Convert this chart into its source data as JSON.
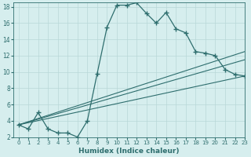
{
  "xlabel": "Humidex (Indice chaleur)",
  "line1_x": [
    0,
    1,
    2,
    3,
    4,
    5,
    6,
    7,
    8,
    9,
    10,
    11,
    12,
    13,
    14,
    15,
    16,
    17,
    18,
    19,
    20,
    21,
    22,
    23
  ],
  "line1_y": [
    3.5,
    3.0,
    5.0,
    3.0,
    2.5,
    2.5,
    2.0,
    4.0,
    9.8,
    15.5,
    18.2,
    18.2,
    18.5,
    17.2,
    16.0,
    17.3,
    15.3,
    14.8,
    12.5,
    12.3,
    12.0,
    10.3,
    9.7,
    9.5
  ],
  "line2_x": [
    0,
    23
  ],
  "line2_y": [
    3.5,
    9.5
  ],
  "line3_x": [
    0,
    23
  ],
  "line3_y": [
    3.5,
    11.5
  ],
  "line4_x": [
    0,
    23
  ],
  "line4_y": [
    3.5,
    12.5
  ],
  "color": "#2e6e6e",
  "bg_color": "#d6eeee",
  "grid_color": "#b8d8d8",
  "xlim": [
    -0.5,
    23
  ],
  "ylim": [
    2,
    18.5
  ],
  "yticks": [
    2,
    4,
    6,
    8,
    10,
    12,
    14,
    16,
    18
  ],
  "xticks": [
    0,
    1,
    2,
    3,
    4,
    5,
    6,
    7,
    8,
    9,
    10,
    11,
    12,
    13,
    14,
    15,
    16,
    17,
    18,
    19,
    20,
    21,
    22,
    23
  ]
}
